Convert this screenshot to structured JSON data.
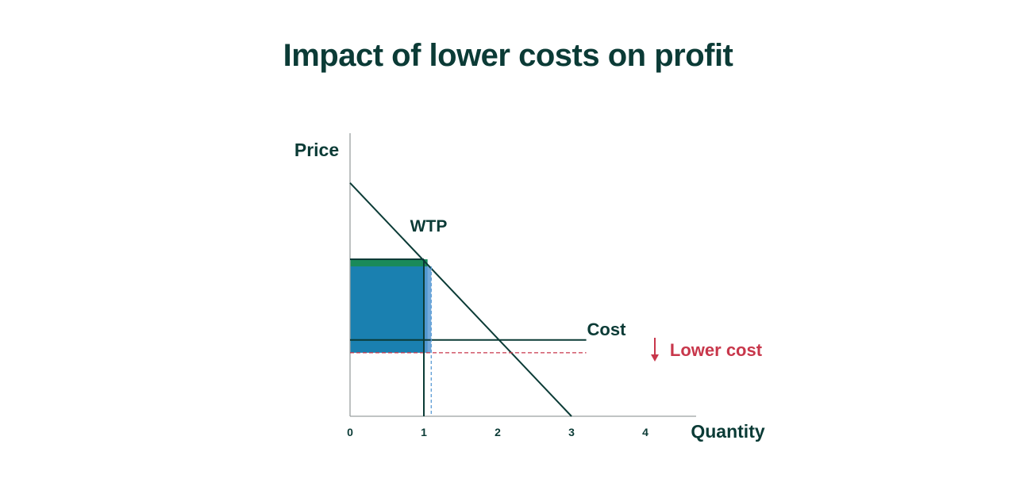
{
  "title": "Impact of lower costs on profit",
  "colors": {
    "dark": "#0b3b36",
    "red": "#c8374b",
    "profit_green": "#1a8a5a",
    "profit_blue": "#1a80b0",
    "gain_light_blue": "#5b9bd5",
    "axis_gray": "#9aa0a0"
  },
  "chart_data": {
    "type": "line",
    "xlabel": "Quantity",
    "ylabel": "Price",
    "xlim": [
      0,
      4.7
    ],
    "ylim": [
      0,
      4
    ],
    "x_ticks": [
      0,
      1,
      2,
      3,
      4
    ],
    "x_tick_labels": [
      "0",
      "1",
      "2",
      "3",
      "4"
    ],
    "series": [
      {
        "name": "WTP",
        "points": [
          [
            0,
            3.27
          ],
          [
            3,
            0
          ]
        ]
      },
      {
        "name": "Cost",
        "points": [
          [
            0,
            1.07
          ],
          [
            3.2,
            1.07
          ]
        ]
      },
      {
        "name": "Lower cost",
        "points": [
          [
            0,
            0.89
          ],
          [
            3.2,
            0.89
          ]
        ]
      }
    ],
    "lower_cost_arrow": "down",
    "shaded_areas": [
      {
        "x": [
          0,
          1.05
        ],
        "y": [
          0.89,
          2.1
        ],
        "color": "#1a80b0"
      },
      {
        "x": [
          0,
          1.05
        ],
        "y": [
          2.1,
          2.2
        ],
        "color": "#1a8a5a"
      }
    ],
    "reference_lines": [
      {
        "x": 1.0,
        "y_top": 2.2,
        "style": "solid"
      },
      {
        "x": 1.1,
        "y_top": 2.1,
        "style": "dashed"
      }
    ]
  }
}
